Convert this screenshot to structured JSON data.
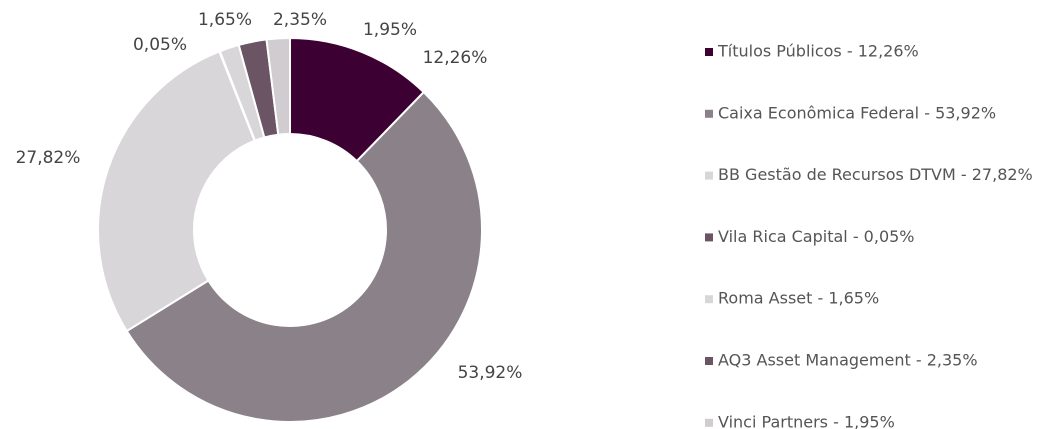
{
  "chart_data": {
    "type": "donut",
    "categories": [
      "Títulos Públicos - 12,26%",
      "Caixa Econômica Federal - 53,92%",
      "BB Gestão de Recursos DTVM - 27,82%",
      "Vila Rica Capital - 0,05%",
      "Roma Asset - 1,65%",
      "AQ3 Asset Management - 2,35%",
      "Vinci Partners - 1,95%"
    ],
    "values": [
      12.26,
      53.92,
      27.82,
      0.05,
      1.65,
      2.35,
      1.95
    ],
    "value_labels": [
      "12,26%",
      "53,92%",
      "27,82%",
      "0,05%",
      "1,65%",
      "2,35%",
      "1,95%"
    ],
    "colors": [
      "#3d0033",
      "#8b8189",
      "#d9d6da",
      "#6b5565",
      "#d9d6da",
      "#6b5565",
      "#d0ccd0"
    ],
    "legend": "right"
  }
}
